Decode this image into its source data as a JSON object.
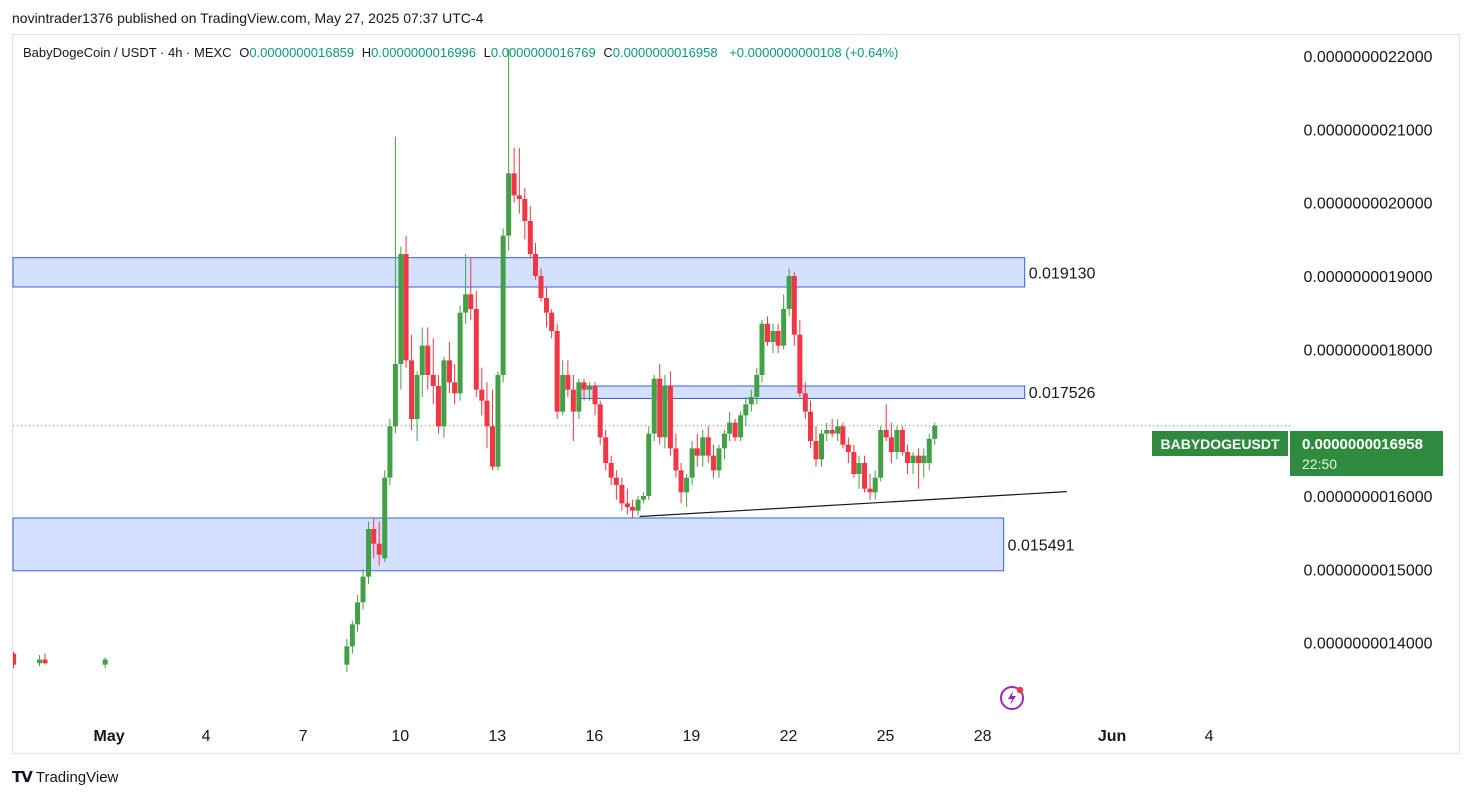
{
  "header": {
    "publisher_line": "novintrader1376 published on TradingView.com, May 27, 2025 07:37 UTC-4"
  },
  "legend": {
    "symbol": "BabyDogeCoin / USDT · 4h · MEXC",
    "o_label": "O",
    "o_value": "0.0000000016859",
    "h_label": "H",
    "h_value": "0.0000000016996",
    "l_label": "L",
    "l_value": "0.0000000016769",
    "c_label": "C",
    "c_value": "0.0000000016958",
    "change": "+0.0000000000108 (+0.64%)"
  },
  "price_badge": {
    "ticker": "BABYDOGEUSDT",
    "price": "0.0000000016958",
    "countdown": "22:50",
    "color": "#2e8b3e"
  },
  "brand": {
    "name": "TradingView"
  },
  "colors": {
    "up": "#43a047",
    "down": "#f23645",
    "zone_fill": "#d4e0ff",
    "zone_border": "#3a5fd9"
  },
  "chart_data": {
    "type": "candlestick",
    "y_axis": {
      "ticks": [
        {
          "value": 22000,
          "label": "0.0000000022000"
        },
        {
          "value": 21000,
          "label": "0.0000000021000"
        },
        {
          "value": 20000,
          "label": "0.0000000020000"
        },
        {
          "value": 19000,
          "label": "0.0000000019000"
        },
        {
          "value": 18000,
          "label": "0.0000000018000"
        },
        {
          "value": 16000,
          "label": "0.0000000016000"
        },
        {
          "value": 15000,
          "label": "0.0000000015000"
        },
        {
          "value": 14000,
          "label": "0.0000000014000"
        }
      ],
      "unit_note": "values x 1e-13",
      "range": [
        13000,
        22300
      ]
    },
    "x_axis": {
      "ticks": [
        {
          "day": 1,
          "label": "May"
        },
        {
          "day": 4,
          "label": "4"
        },
        {
          "day": 7,
          "label": "7"
        },
        {
          "day": 10,
          "label": "10"
        },
        {
          "day": 13,
          "label": "13"
        },
        {
          "day": 16,
          "label": "16"
        },
        {
          "day": 19,
          "label": "19"
        },
        {
          "day": 22,
          "label": "22"
        },
        {
          "day": 25,
          "label": "25"
        },
        {
          "day": 28,
          "label": "28"
        },
        {
          "day": 32,
          "label": "Jun"
        },
        {
          "day": 35,
          "label": "4"
        }
      ],
      "range": [
        -2,
        37.5
      ]
    },
    "zones": [
      {
        "label": "0.019130",
        "top": 19250,
        "bottom": 18850,
        "start": -2,
        "end": 29.3
      },
      {
        "label": "0.017526",
        "top": 17500,
        "bottom": 17330,
        "start": 15.5,
        "end": 29.3
      },
      {
        "label": "0.015491",
        "top": 15700,
        "bottom": 14980,
        "start": -2,
        "end": 28.65
      }
    ],
    "trendline": {
      "x1": 17.4,
      "y1": 15720,
      "x2": 30.6,
      "y2": 16060
    },
    "current_price": 16958,
    "candles": [
      {
        "x": -1.95,
        "o": 13850,
        "h": 13880,
        "l": 13650,
        "c": 13700
      },
      {
        "x": -1.15,
        "o": 13720,
        "h": 13830,
        "l": 13680,
        "c": 13770
      },
      {
        "x": -0.98,
        "o": 13770,
        "h": 13850,
        "l": 13700,
        "c": 13720
      },
      {
        "x": 0.88,
        "o": 13700,
        "h": 13800,
        "l": 13650,
        "c": 13770
      },
      {
        "x": 8.35,
        "o": 13700,
        "h": 14050,
        "l": 13600,
        "c": 13950
      },
      {
        "x": 8.52,
        "o": 13950,
        "h": 14300,
        "l": 13850,
        "c": 14250
      },
      {
        "x": 8.68,
        "o": 14250,
        "h": 14650,
        "l": 14150,
        "c": 14550
      },
      {
        "x": 8.85,
        "o": 14550,
        "h": 15000,
        "l": 14450,
        "c": 14900
      },
      {
        "x": 9.02,
        "o": 14900,
        "h": 15650,
        "l": 14800,
        "c": 15550
      },
      {
        "x": 9.18,
        "o": 15550,
        "h": 15700,
        "l": 15150,
        "c": 15350
      },
      {
        "x": 9.35,
        "o": 15350,
        "h": 15650,
        "l": 15050,
        "c": 15200
      },
      {
        "x": 9.52,
        "o": 15150,
        "h": 16350,
        "l": 15100,
        "c": 16250
      },
      {
        "x": 9.68,
        "o": 16250,
        "h": 17050,
        "l": 16150,
        "c": 16950
      },
      {
        "x": 9.85,
        "o": 16950,
        "h": 20900,
        "l": 16850,
        "c": 17800
      },
      {
        "x": 10.02,
        "o": 17800,
        "h": 19400,
        "l": 17450,
        "c": 19300
      },
      {
        "x": 10.18,
        "o": 19300,
        "h": 19550,
        "l": 17750,
        "c": 17850
      },
      {
        "x": 10.35,
        "o": 17850,
        "h": 18200,
        "l": 16900,
        "c": 17050
      },
      {
        "x": 10.52,
        "o": 17050,
        "h": 17700,
        "l": 16750,
        "c": 17650
      },
      {
        "x": 10.68,
        "o": 17650,
        "h": 18300,
        "l": 17350,
        "c": 18050
      },
      {
        "x": 10.85,
        "o": 18050,
        "h": 18300,
        "l": 17450,
        "c": 17650
      },
      {
        "x": 11.02,
        "o": 17650,
        "h": 18150,
        "l": 17250,
        "c": 17500
      },
      {
        "x": 11.18,
        "o": 17500,
        "h": 17650,
        "l": 16850,
        "c": 16950
      },
      {
        "x": 11.35,
        "o": 16950,
        "h": 17900,
        "l": 16800,
        "c": 17850
      },
      {
        "x": 11.52,
        "o": 17850,
        "h": 18100,
        "l": 17400,
        "c": 17550
      },
      {
        "x": 11.68,
        "o": 17550,
        "h": 17800,
        "l": 17250,
        "c": 17400
      },
      {
        "x": 11.85,
        "o": 17400,
        "h": 18600,
        "l": 17300,
        "c": 18500
      },
      {
        "x": 12.02,
        "o": 18500,
        "h": 19300,
        "l": 18350,
        "c": 18750
      },
      {
        "x": 12.18,
        "o": 18750,
        "h": 19250,
        "l": 18400,
        "c": 18550
      },
      {
        "x": 12.35,
        "o": 18550,
        "h": 18800,
        "l": 17350,
        "c": 17450
      },
      {
        "x": 12.52,
        "o": 17450,
        "h": 17750,
        "l": 17100,
        "c": 17300
      },
      {
        "x": 12.68,
        "o": 17300,
        "h": 17550,
        "l": 16650,
        "c": 16950
      },
      {
        "x": 12.85,
        "o": 16950,
        "h": 17450,
        "l": 16350,
        "c": 16400
      },
      {
        "x": 13.02,
        "o": 16400,
        "h": 17700,
        "l": 16350,
        "c": 17650
      },
      {
        "x": 13.18,
        "o": 17650,
        "h": 19650,
        "l": 17550,
        "c": 19550
      },
      {
        "x": 13.35,
        "o": 19550,
        "h": 22100,
        "l": 19350,
        "c": 20400
      },
      {
        "x": 13.52,
        "o": 20400,
        "h": 20750,
        "l": 20000,
        "c": 20100
      },
      {
        "x": 13.68,
        "o": 20100,
        "h": 20750,
        "l": 19850,
        "c": 20050
      },
      {
        "x": 13.85,
        "o": 20050,
        "h": 20200,
        "l": 19500,
        "c": 19750
      },
      {
        "x": 14.02,
        "o": 19750,
        "h": 19950,
        "l": 19250,
        "c": 19300
      },
      {
        "x": 14.18,
        "o": 19300,
        "h": 19450,
        "l": 18950,
        "c": 19000
      },
      {
        "x": 14.35,
        "o": 19000,
        "h": 19100,
        "l": 18650,
        "c": 18700
      },
      {
        "x": 14.52,
        "o": 18700,
        "h": 18850,
        "l": 18300,
        "c": 18500
      },
      {
        "x": 14.68,
        "o": 18500,
        "h": 18550,
        "l": 18150,
        "c": 18250
      },
      {
        "x": 14.85,
        "o": 18250,
        "h": 18350,
        "l": 17050,
        "c": 17150
      },
      {
        "x": 15.02,
        "o": 17150,
        "h": 17850,
        "l": 17100,
        "c": 17650
      },
      {
        "x": 15.18,
        "o": 17650,
        "h": 17850,
        "l": 17350,
        "c": 17450
      },
      {
        "x": 15.35,
        "o": 17450,
        "h": 17650,
        "l": 16750,
        "c": 17150
      },
      {
        "x": 15.52,
        "o": 17150,
        "h": 17600,
        "l": 17050,
        "c": 17550
      },
      {
        "x": 15.68,
        "o": 17550,
        "h": 17600,
        "l": 17300,
        "c": 17450
      },
      {
        "x": 15.85,
        "o": 17450,
        "h": 17550,
        "l": 17300,
        "c": 17500
      },
      {
        "x": 16.02,
        "o": 17500,
        "h": 17550,
        "l": 17100,
        "c": 17250
      },
      {
        "x": 16.18,
        "o": 17250,
        "h": 17300,
        "l": 16700,
        "c": 16800
      },
      {
        "x": 16.35,
        "o": 16800,
        "h": 16900,
        "l": 16350,
        "c": 16450
      },
      {
        "x": 16.52,
        "o": 16450,
        "h": 16550,
        "l": 16150,
        "c": 16250
      },
      {
        "x": 16.68,
        "o": 16250,
        "h": 16350,
        "l": 15950,
        "c": 16150
      },
      {
        "x": 16.85,
        "o": 16150,
        "h": 16250,
        "l": 15800,
        "c": 15900
      },
      {
        "x": 17.02,
        "o": 15900,
        "h": 16100,
        "l": 15750,
        "c": 15850
      },
      {
        "x": 17.18,
        "o": 15850,
        "h": 15950,
        "l": 15700,
        "c": 15800
      },
      {
        "x": 17.35,
        "o": 15800,
        "h": 16000,
        "l": 15730,
        "c": 15950
      },
      {
        "x": 17.52,
        "o": 15950,
        "h": 16050,
        "l": 15900,
        "c": 16000
      },
      {
        "x": 17.68,
        "o": 16000,
        "h": 16950,
        "l": 15950,
        "c": 16850
      },
      {
        "x": 17.85,
        "o": 16850,
        "h": 17650,
        "l": 16750,
        "c": 17600
      },
      {
        "x": 18.02,
        "o": 17600,
        "h": 17800,
        "l": 16700,
        "c": 16800
      },
      {
        "x": 18.18,
        "o": 16800,
        "h": 17650,
        "l": 16650,
        "c": 17500
      },
      {
        "x": 18.35,
        "o": 17500,
        "h": 17700,
        "l": 16550,
        "c": 16650
      },
      {
        "x": 18.52,
        "o": 16650,
        "h": 16850,
        "l": 16250,
        "c": 16350
      },
      {
        "x": 18.68,
        "o": 16350,
        "h": 16450,
        "l": 15900,
        "c": 16050
      },
      {
        "x": 18.85,
        "o": 16050,
        "h": 16300,
        "l": 15850,
        "c": 16250
      },
      {
        "x": 19.02,
        "o": 16250,
        "h": 16750,
        "l": 16150,
        "c": 16650
      },
      {
        "x": 19.18,
        "o": 16650,
        "h": 16850,
        "l": 16400,
        "c": 16550
      },
      {
        "x": 19.35,
        "o": 16550,
        "h": 16900,
        "l": 16400,
        "c": 16800
      },
      {
        "x": 19.52,
        "o": 16800,
        "h": 16950,
        "l": 16450,
        "c": 16550
      },
      {
        "x": 19.68,
        "o": 16550,
        "h": 16700,
        "l": 16250,
        "c": 16350
      },
      {
        "x": 19.85,
        "o": 16350,
        "h": 16700,
        "l": 16250,
        "c": 16650
      },
      {
        "x": 20.02,
        "o": 16650,
        "h": 16900,
        "l": 16500,
        "c": 16850
      },
      {
        "x": 20.18,
        "o": 16850,
        "h": 17150,
        "l": 16750,
        "c": 17000
      },
      {
        "x": 20.35,
        "o": 17000,
        "h": 17050,
        "l": 16750,
        "c": 16800
      },
      {
        "x": 20.52,
        "o": 16800,
        "h": 17150,
        "l": 16750,
        "c": 17100
      },
      {
        "x": 20.68,
        "o": 17100,
        "h": 17350,
        "l": 16950,
        "c": 17250
      },
      {
        "x": 20.85,
        "o": 17250,
        "h": 17450,
        "l": 17150,
        "c": 17350
      },
      {
        "x": 21.02,
        "o": 17350,
        "h": 17750,
        "l": 17250,
        "c": 17650
      },
      {
        "x": 21.18,
        "o": 17650,
        "h": 18400,
        "l": 17550,
        "c": 18350
      },
      {
        "x": 21.35,
        "o": 18350,
        "h": 18450,
        "l": 18050,
        "c": 18100
      },
      {
        "x": 21.52,
        "o": 18100,
        "h": 18350,
        "l": 17950,
        "c": 18250
      },
      {
        "x": 21.68,
        "o": 18250,
        "h": 18350,
        "l": 17950,
        "c": 18050
      },
      {
        "x": 21.85,
        "o": 18050,
        "h": 18750,
        "l": 18000,
        "c": 18550
      },
      {
        "x": 22.02,
        "o": 18550,
        "h": 19100,
        "l": 18450,
        "c": 19000
      },
      {
        "x": 22.18,
        "o": 19000,
        "h": 19050,
        "l": 18050,
        "c": 18200
      },
      {
        "x": 22.35,
        "o": 18200,
        "h": 18400,
        "l": 17350,
        "c": 17400
      },
      {
        "x": 22.52,
        "o": 17400,
        "h": 17550,
        "l": 17050,
        "c": 17150
      },
      {
        "x": 22.68,
        "o": 17150,
        "h": 17300,
        "l": 16650,
        "c": 16750
      },
      {
        "x": 22.85,
        "o": 16750,
        "h": 16950,
        "l": 16400,
        "c": 16500
      },
      {
        "x": 23.02,
        "o": 16500,
        "h": 16900,
        "l": 16400,
        "c": 16850
      },
      {
        "x": 23.18,
        "o": 16850,
        "h": 17000,
        "l": 16750,
        "c": 16900
      },
      {
        "x": 23.35,
        "o": 16900,
        "h": 17050,
        "l": 16800,
        "c": 16850
      },
      {
        "x": 23.52,
        "o": 16850,
        "h": 17050,
        "l": 16750,
        "c": 16950
      },
      {
        "x": 23.68,
        "o": 16950,
        "h": 17000,
        "l": 16650,
        "c": 16700
      },
      {
        "x": 23.85,
        "o": 16700,
        "h": 16800,
        "l": 16450,
        "c": 16600
      },
      {
        "x": 24.02,
        "o": 16600,
        "h": 16700,
        "l": 16250,
        "c": 16300
      },
      {
        "x": 24.18,
        "o": 16300,
        "h": 16550,
        "l": 16100,
        "c": 16450
      },
      {
        "x": 24.35,
        "o": 16450,
        "h": 16550,
        "l": 16050,
        "c": 16100
      },
      {
        "x": 24.52,
        "o": 16100,
        "h": 16300,
        "l": 15950,
        "c": 16050
      },
      {
        "x": 24.68,
        "o": 16050,
        "h": 16350,
        "l": 15950,
        "c": 16250
      },
      {
        "x": 24.85,
        "o": 16250,
        "h": 16950,
        "l": 16200,
        "c": 16900
      },
      {
        "x": 25.02,
        "o": 16900,
        "h": 17250,
        "l": 16750,
        "c": 16800
      },
      {
        "x": 25.18,
        "o": 16800,
        "h": 17000,
        "l": 16450,
        "c": 16600
      },
      {
        "x": 25.35,
        "o": 16600,
        "h": 16950,
        "l": 16500,
        "c": 16900
      },
      {
        "x": 25.52,
        "o": 16900,
        "h": 16950,
        "l": 16550,
        "c": 16600
      },
      {
        "x": 25.68,
        "o": 16600,
        "h": 16700,
        "l": 16300,
        "c": 16450
      },
      {
        "x": 25.85,
        "o": 16450,
        "h": 16600,
        "l": 16300,
        "c": 16550
      },
      {
        "x": 26.02,
        "o": 16550,
        "h": 16650,
        "l": 16100,
        "c": 16450
      },
      {
        "x": 26.18,
        "o": 16450,
        "h": 16650,
        "l": 16250,
        "c": 16550
      },
      {
        "x": 26.35,
        "o": 16450,
        "h": 16850,
        "l": 16350,
        "c": 16780
      },
      {
        "x": 26.52,
        "o": 16780,
        "h": 17000,
        "l": 16700,
        "c": 16958
      }
    ]
  }
}
